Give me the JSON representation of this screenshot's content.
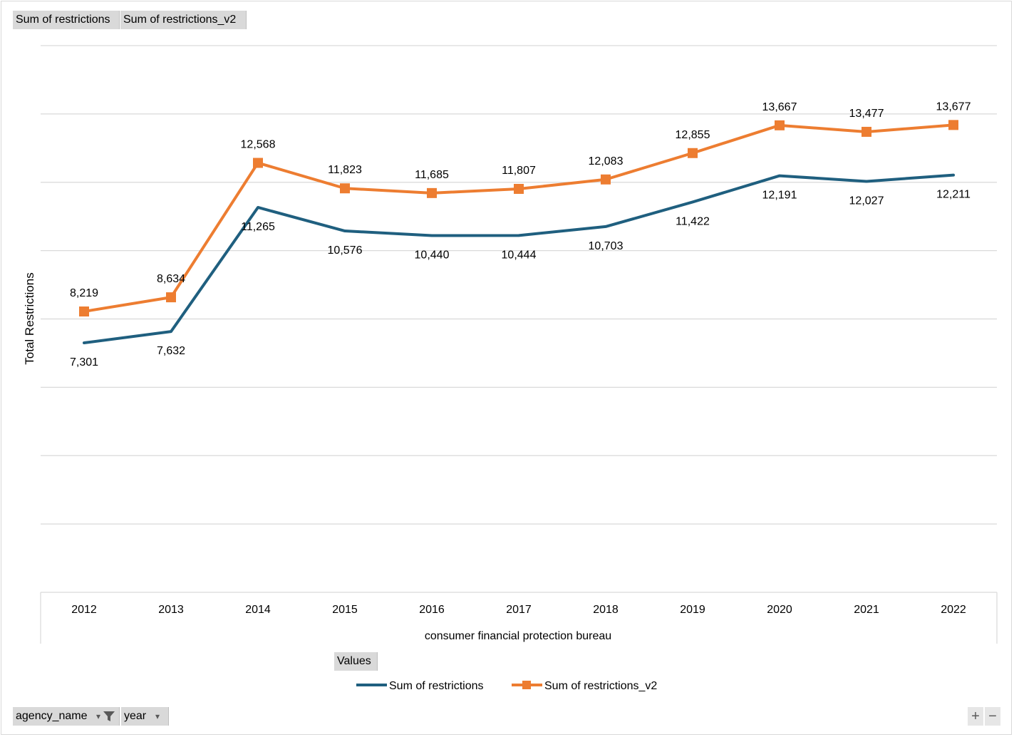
{
  "field_buttons": {
    "data_1": "Sum of restrictions",
    "data_2": "Sum of restrictions_v2",
    "values": "Values",
    "filter": "agency_name",
    "axis": "year"
  },
  "icons": {
    "filter_icon": "funnel",
    "dropdown_icon": "triangle-down",
    "expand_icon": "plus",
    "collapse_icon": "minus"
  },
  "controls": {
    "expand": "+",
    "collapse": "−"
  },
  "chart_data": {
    "type": "line",
    "ylabel": "Total Restrictions",
    "xlabel": "consumer financial protection bureau",
    "categories": [
      "2012",
      "2013",
      "2014",
      "2015",
      "2016",
      "2017",
      "2018",
      "2019",
      "2020",
      "2021",
      "2022"
    ],
    "ylim": [
      0,
      16000
    ],
    "grid": true,
    "legend_position": "bottom",
    "series": [
      {
        "name": "Sum of restrictions",
        "color": "#1f5f7f",
        "marker": "none",
        "values": [
          7301,
          7632,
          11265,
          10576,
          10440,
          10444,
          10703,
          11422,
          12191,
          12027,
          12211
        ],
        "labels": [
          "7,301",
          "7,632",
          "11,265",
          "10,576",
          "10,440",
          "10,444",
          "10,703",
          "11,422",
          "12,191",
          "12,027",
          "12,211"
        ]
      },
      {
        "name": "Sum of restrictions_v2",
        "color": "#ed7d31",
        "marker": "square",
        "values": [
          8219,
          8634,
          12568,
          11823,
          11685,
          11807,
          12083,
          12855,
          13667,
          13477,
          13677
        ],
        "labels": [
          "8,219",
          "8,634",
          "12,568",
          "11,823",
          "11,685",
          "11,807",
          "12,083",
          "12,855",
          "13,667",
          "13,477",
          "13,677"
        ]
      }
    ]
  }
}
